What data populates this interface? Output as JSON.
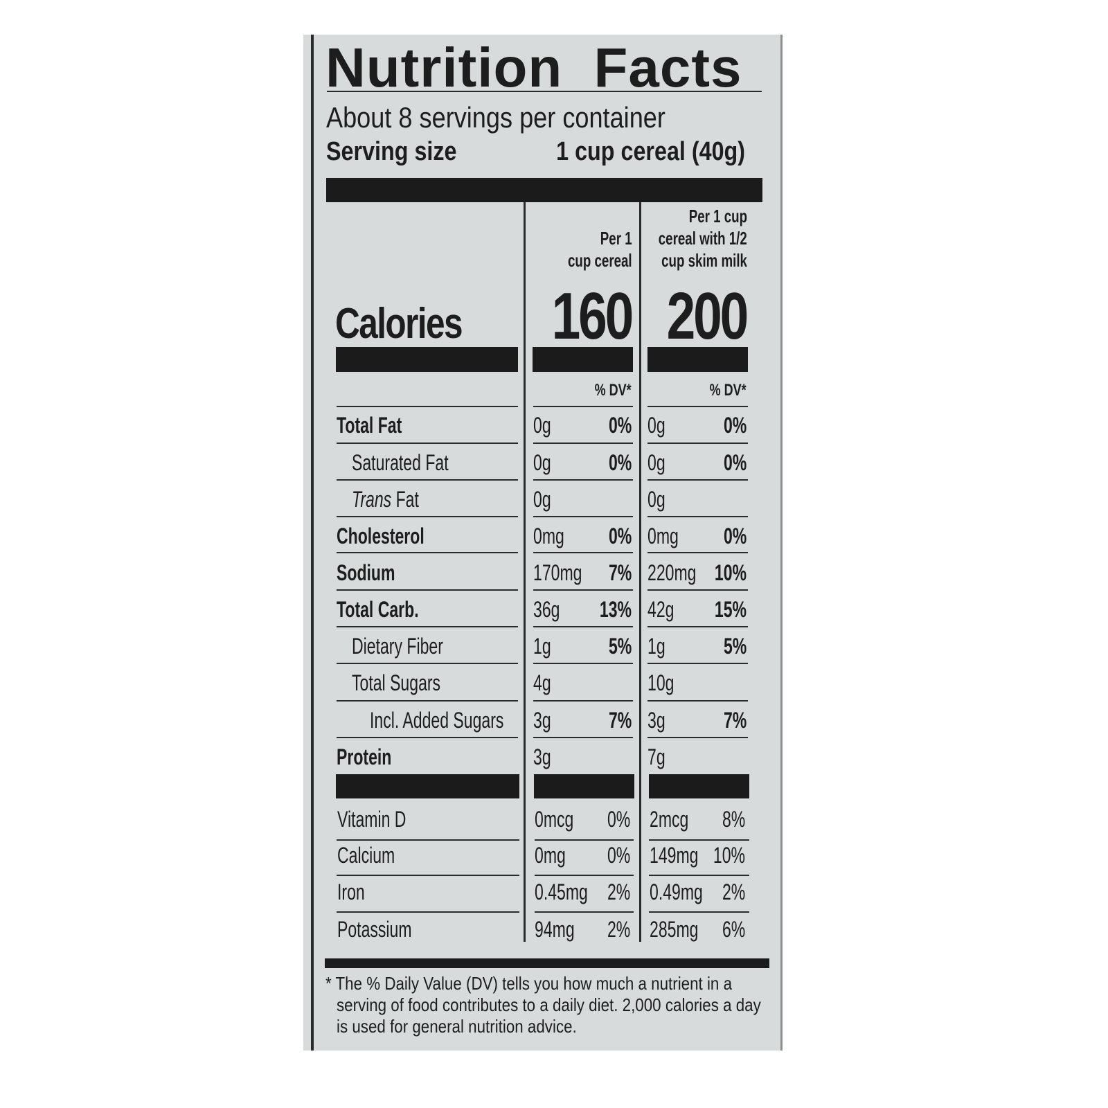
{
  "label": {
    "title": "Nutrition Facts",
    "servings_per_container": "About 8 servings per container",
    "serving_size_label": "Serving size",
    "serving_size_value": "1 cup cereal (40g)",
    "columns": [
      {
        "header_lines": [
          "Per 1",
          "cup cereal"
        ],
        "calories": "160",
        "dv_header": "% DV*"
      },
      {
        "header_lines": [
          "Per 1 cup",
          "cereal with 1/2",
          "cup skim milk"
        ],
        "calories": "200",
        "dv_header": "% DV*"
      }
    ],
    "calories_label": "Calories",
    "nutrients": [
      {
        "name": "Total Fat",
        "bold": true,
        "indent": 0,
        "c1_amt": "0g",
        "c1_dv": "0%",
        "c2_amt": "0g",
        "c2_dv": "0%"
      },
      {
        "name": "Saturated Fat",
        "bold": false,
        "indent": 1,
        "c1_amt": "0g",
        "c1_dv": "0%",
        "c2_amt": "0g",
        "c2_dv": "0%"
      },
      {
        "name_italic": "Trans",
        "name": " Fat",
        "bold": false,
        "indent": 1,
        "c1_amt": "0g",
        "c1_dv": "",
        "c2_amt": "0g",
        "c2_dv": ""
      },
      {
        "name": "Cholesterol",
        "bold": true,
        "indent": 0,
        "c1_amt": "0mg",
        "c1_dv": "0%",
        "c2_amt": "0mg",
        "c2_dv": "0%"
      },
      {
        "name": "Sodium",
        "bold": true,
        "indent": 0,
        "c1_amt": "170mg",
        "c1_dv": "7%",
        "c2_amt": "220mg",
        "c2_dv": "10%"
      },
      {
        "name": "Total Carb.",
        "bold": true,
        "indent": 0,
        "c1_amt": "36g",
        "c1_dv": "13%",
        "c2_amt": "42g",
        "c2_dv": "15%"
      },
      {
        "name": "Dietary Fiber",
        "bold": false,
        "indent": 1,
        "c1_amt": "1g",
        "c1_dv": "5%",
        "c2_amt": "1g",
        "c2_dv": "5%"
      },
      {
        "name": "Total Sugars",
        "bold": false,
        "indent": 1,
        "c1_amt": "4g",
        "c1_dv": "",
        "c2_amt": "10g",
        "c2_dv": ""
      },
      {
        "name": "Incl. Added Sugars",
        "bold": false,
        "indent": 2,
        "c1_amt": "3g",
        "c1_dv": "7%",
        "c2_amt": "3g",
        "c2_dv": "7%"
      },
      {
        "name": "Protein",
        "bold": true,
        "indent": 0,
        "c1_amt": "3g",
        "c1_dv": "",
        "c2_amt": "7g",
        "c2_dv": ""
      }
    ],
    "vitamins": [
      {
        "name": "Vitamin D",
        "c1_amt": "0mcg",
        "c1_dv": "0%",
        "c2_amt": "2mcg",
        "c2_dv": "8%"
      },
      {
        "name": "Calcium",
        "c1_amt": "0mg",
        "c1_dv": "0%",
        "c2_amt": "149mg",
        "c2_dv": "10%"
      },
      {
        "name": "Iron",
        "c1_amt": "0.45mg",
        "c1_dv": "2%",
        "c2_amt": "0.49mg",
        "c2_dv": "2%"
      },
      {
        "name": "Potassium",
        "c1_amt": "94mg",
        "c1_dv": "2%",
        "c2_amt": "285mg",
        "c2_dv": "6%"
      }
    ],
    "footnote_lines": [
      "* The % Daily Value (DV) tells you how much a nutrient in a",
      "serving of food contributes to a daily diet. 2,000 calories a day",
      "is used for general nutrition advice."
    ]
  }
}
